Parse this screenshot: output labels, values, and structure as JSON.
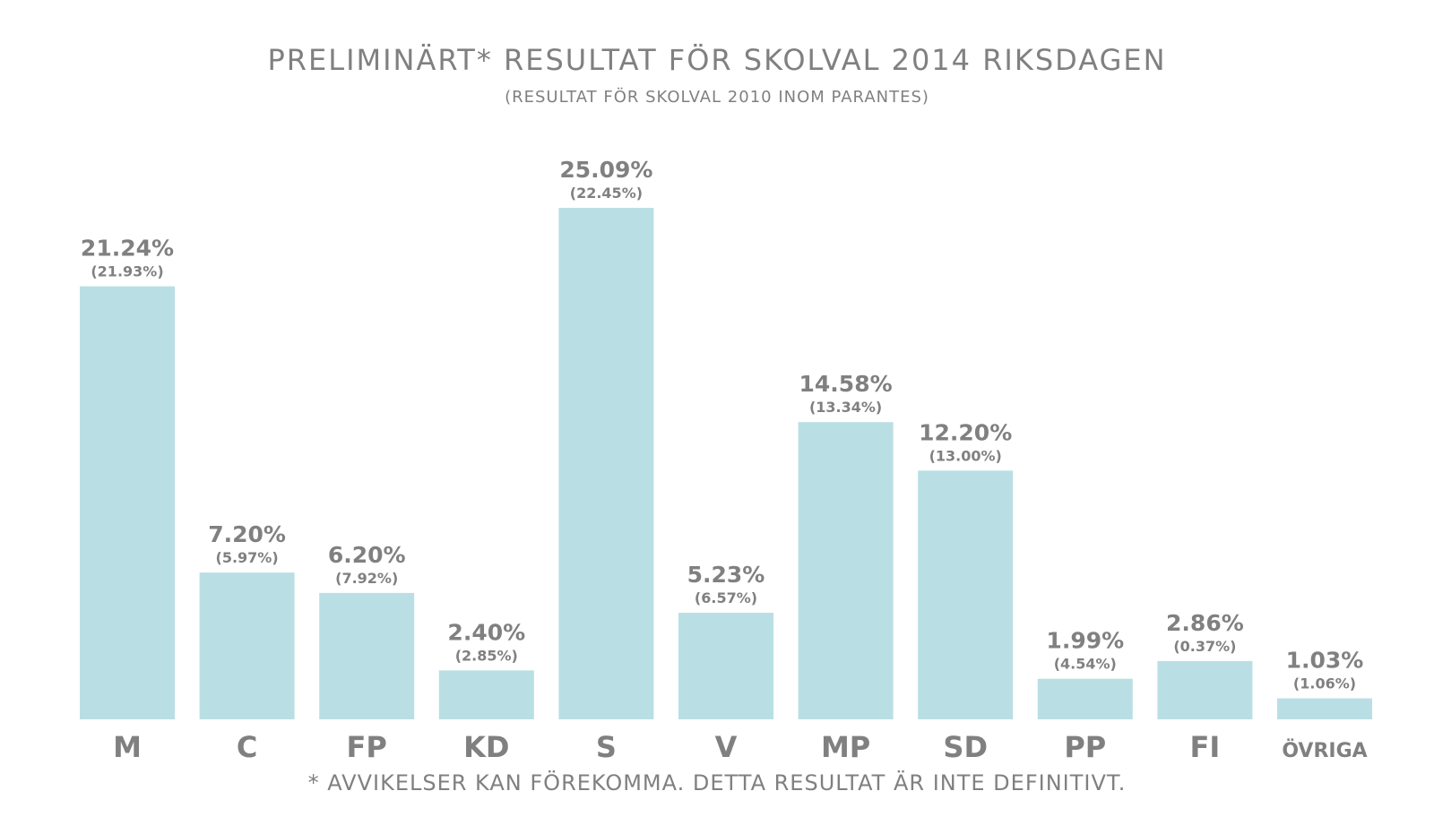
{
  "chart_data": {
    "type": "bar",
    "title": "PRELIMINÄRT* RESULTAT FÖR SKOLVAL 2014 RIKSDAGEN",
    "subtitle": "(RESULTAT FÖR SKOLVAL 2010 INOM PARANTES)",
    "footnote": "* AVVIKELSER KAN FÖREKOMMA. DETTA RESULTAT ÄR INTE DEFINITIVT.",
    "categories": [
      "M",
      "C",
      "FP",
      "KD",
      "S",
      "V",
      "MP",
      "SD",
      "PP",
      "FI",
      "ÖVRIGA"
    ],
    "values": [
      21.24,
      7.2,
      6.2,
      2.4,
      25.09,
      5.23,
      14.58,
      12.2,
      1.99,
      2.86,
      1.03
    ],
    "value_labels": [
      "21.24%",
      "7.20%",
      "6.20%",
      "2.40%",
      "25.09%",
      "5.23%",
      "14.58%",
      "12.20%",
      "1.99%",
      "2.86%",
      "1.03%"
    ],
    "previous_labels": [
      "(21.93%)",
      "(5.97%)",
      "(7.92%)",
      "(2.85%)",
      "(22.45%)",
      "(6.57%)",
      "(13.34%)",
      "(13.00%)",
      "(4.54%)",
      "(0.37%)",
      "(1.06%)"
    ],
    "previous_values": [
      21.93,
      5.97,
      7.92,
      2.85,
      22.45,
      6.57,
      13.34,
      13.0,
      4.54,
      0.37,
      1.06
    ],
    "ylim": [
      0,
      25.09
    ],
    "grid": false,
    "legend": "none",
    "bar_color": "#b9dfe4",
    "text_color": "#808080"
  }
}
